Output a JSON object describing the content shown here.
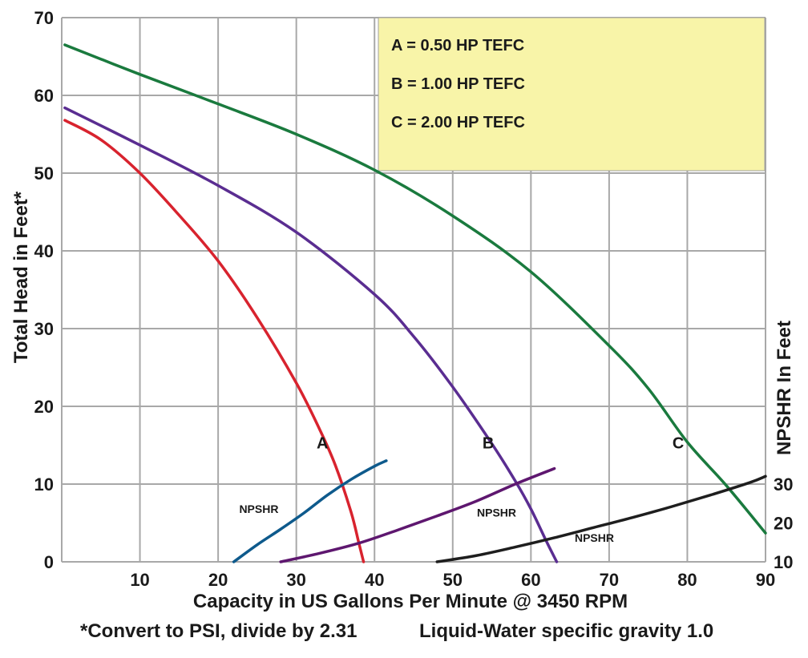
{
  "chart_data": {
    "type": "line",
    "xlabel": "Capacity in US Gallons Per Minute @ 3450 RPM",
    "ylabel": "Total Head in Feet*",
    "y2label": "NPSHR In Feet",
    "footnote_left": "*Convert to PSI, divide by 2.31",
    "footnote_right": "Liquid-Water specific gravity 1.0",
    "xlim": [
      0,
      90
    ],
    "ylim": [
      0,
      70
    ],
    "grid": true,
    "x_ticks": [
      "10",
      "20",
      "30",
      "40",
      "50",
      "60",
      "70",
      "80",
      "90"
    ],
    "y_ticks": [
      "0",
      "10",
      "20",
      "30",
      "40",
      "50",
      "60",
      "70"
    ],
    "y2_ticks": [
      {
        "label": "10",
        "at_head": 0
      },
      {
        "label": "20",
        "at_head": 5
      },
      {
        "label": "30",
        "at_head": 10
      }
    ],
    "legend": [
      {
        "text": "A = 0.50 HP TEFC"
      },
      {
        "text": "B = 1.00 HP TEFC"
      },
      {
        "text": "C = 2.00 HP TEFC"
      }
    ],
    "legend_color": "#f8f4a8",
    "series": [
      {
        "name": "A",
        "label": "A",
        "color": "#d8232e",
        "label_at": [
          32.6,
          14.6
        ],
        "x": [
          0.4,
          5,
          10,
          15,
          20,
          25,
          30,
          33,
          35,
          37,
          38,
          38.6
        ],
        "y": [
          56.8,
          54.3,
          50.0,
          44.6,
          38.7,
          31.4,
          23.0,
          17.0,
          12.4,
          6.4,
          2.4,
          0
        ]
      },
      {
        "name": "B",
        "label": "B",
        "color": "#5a2d91",
        "label_at": [
          53.8,
          14.6
        ],
        "x": [
          0.4,
          10,
          20,
          30,
          40,
          45,
          50,
          55,
          58,
          60,
          62,
          63.3
        ],
        "y": [
          58.4,
          53.6,
          48.4,
          42.4,
          34.4,
          29.0,
          22.5,
          15.2,
          10.4,
          6.8,
          2.6,
          0
        ]
      },
      {
        "name": "C",
        "label": "C",
        "color": "#1a7a3e",
        "label_at": [
          78.1,
          14.6
        ],
        "x": [
          0.4,
          10,
          20,
          30,
          40,
          50,
          60,
          70,
          75,
          80,
          85,
          90
        ],
        "y": [
          66.5,
          62.7,
          58.9,
          55.0,
          50.4,
          44.5,
          37.3,
          27.8,
          22.3,
          15.4,
          9.8,
          3.7
        ]
      },
      {
        "name": "NPSHR (A)",
        "label": "NPSHR",
        "color": "#0e5a8c",
        "label_at": [
          22.7,
          6.3
        ],
        "x": [
          22.0,
          25.0,
          28.0,
          31.0,
          34.0,
          37.0,
          40.0,
          41.5
        ],
        "y": [
          0.0,
          2.2,
          4.2,
          6.3,
          8.6,
          10.6,
          12.3,
          13.0
        ]
      },
      {
        "name": "NPSHR (B)",
        "label": "NPSHR",
        "color": "#5e176f",
        "label_at": [
          53.1,
          5.8
        ],
        "x": [
          28.0,
          33.0,
          38.0,
          43.0,
          48.0,
          53.0,
          58.0,
          63.0
        ],
        "y": [
          0.0,
          1.1,
          2.4,
          4.1,
          5.9,
          7.8,
          10.0,
          12.0
        ]
      },
      {
        "name": "NPSHR (C)",
        "label": "NPSHR",
        "color": "#1e1e1e",
        "label_at": [
          65.6,
          2.6
        ],
        "x": [
          48.0,
          53.0,
          58.0,
          63.0,
          68.0,
          73.0,
          78.0,
          83.0,
          88.0,
          90.0
        ],
        "y": [
          0.0,
          0.8,
          1.9,
          3.1,
          4.4,
          5.7,
          7.1,
          8.6,
          10.2,
          11.0
        ]
      }
    ]
  }
}
